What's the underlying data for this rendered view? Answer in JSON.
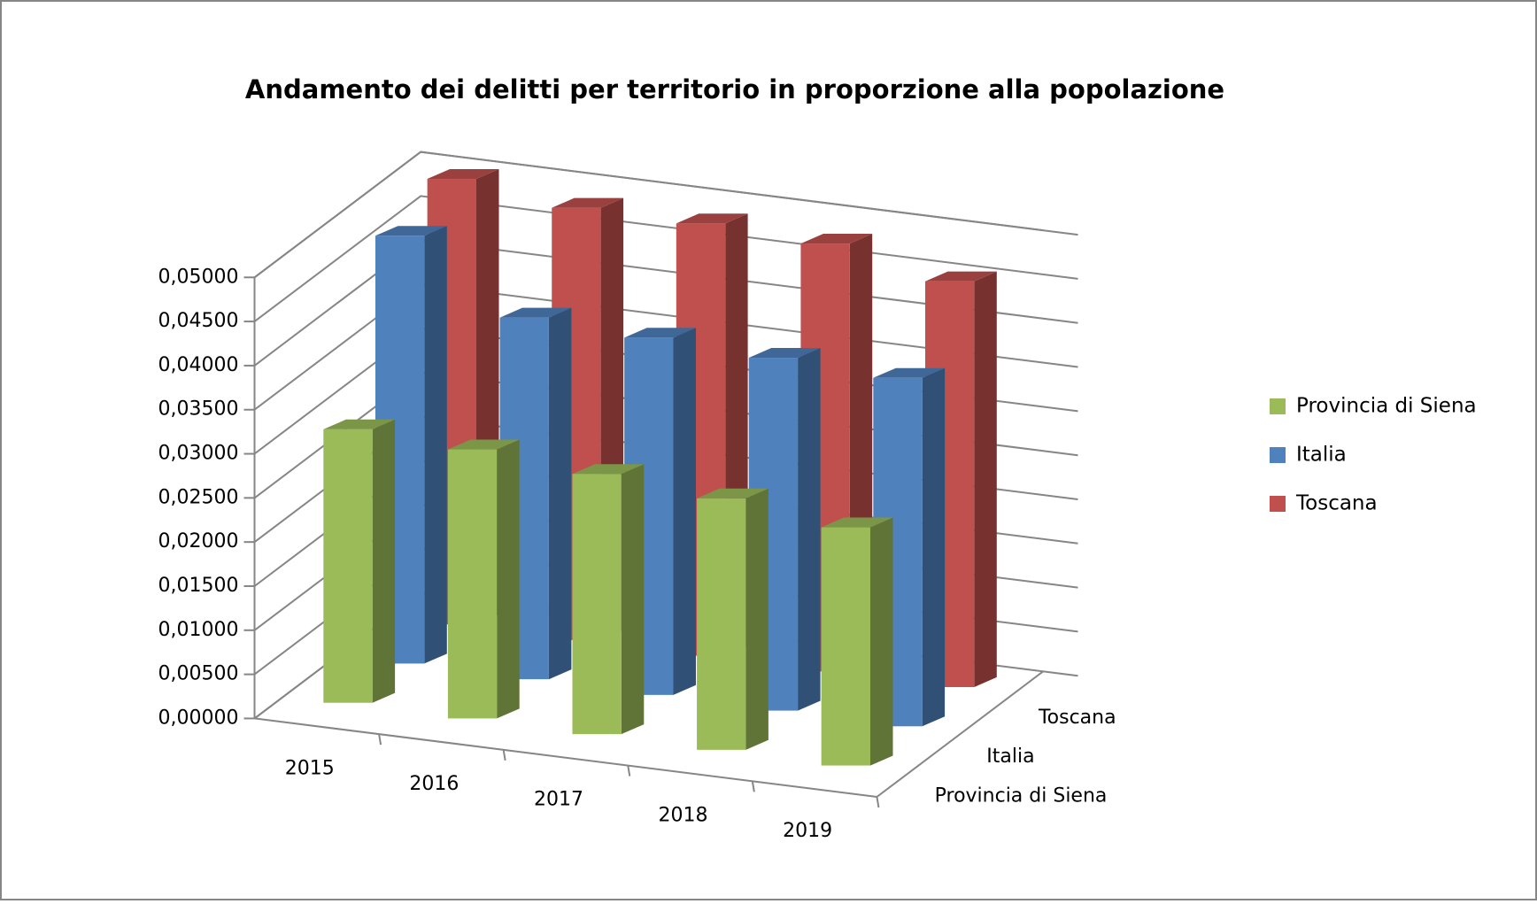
{
  "chart_data": {
    "type": "bar3d",
    "title": "Andamento dei delitti per territorio in proporzione alla popolazione",
    "categories": [
      "2015",
      "2016",
      "2017",
      "2018",
      "2019"
    ],
    "series": [
      {
        "name": "Provincia di  Siena",
        "color": "#9bbb59",
        "values": [
          0.031,
          0.0305,
          0.0295,
          0.0285,
          0.027
        ]
      },
      {
        "name": "Italia",
        "color": "#4f81bd",
        "values": [
          0.0485,
          0.041,
          0.0405,
          0.04,
          0.0395
        ]
      },
      {
        "name": "Toscana",
        "color": "#c0504d",
        "values": [
          0.0505,
          0.049,
          0.049,
          0.0485,
          0.046
        ]
      }
    ],
    "ylim": [
      0,
      0.05
    ],
    "yticks": [
      {
        "value": 0,
        "label": "0,00000"
      },
      {
        "value": 0.005,
        "label": "0,00500"
      },
      {
        "value": 0.01,
        "label": "0,01000"
      },
      {
        "value": 0.015,
        "label": "0,01500"
      },
      {
        "value": 0.02,
        "label": "0,02000"
      },
      {
        "value": 0.025,
        "label": "0,02500"
      },
      {
        "value": 0.03,
        "label": "0,03000"
      },
      {
        "value": 0.035,
        "label": "0,03500"
      },
      {
        "value": 0.04,
        "label": "0,04000"
      },
      {
        "value": 0.045,
        "label": "0,04500"
      },
      {
        "value": 0.05,
        "label": "0,05000"
      }
    ],
    "grid": true,
    "legend": "right"
  }
}
